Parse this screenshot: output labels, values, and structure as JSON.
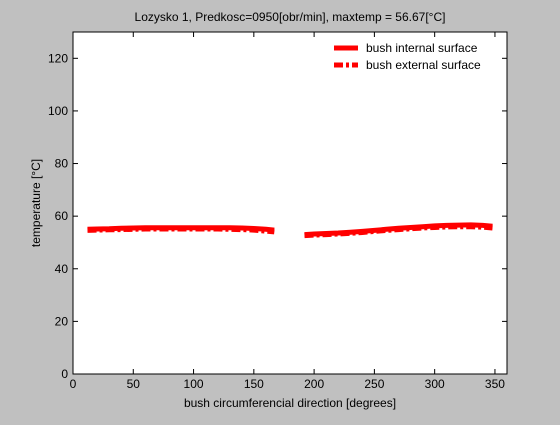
{
  "figure": {
    "background": "#c0c0c0",
    "axes_background": "#ffffff"
  },
  "chart_data": {
    "type": "line",
    "title": "Lozysko 1, Predkosc=0950[obr/min], maxtemp = 56.67[°C]",
    "xlabel": "bush circumferencial direction [degrees]",
    "ylabel": "temperature [°C]",
    "xlim": [
      0,
      360
    ],
    "ylim": [
      0,
      130
    ],
    "xticks": [
      0,
      50,
      100,
      150,
      200,
      250,
      300,
      350
    ],
    "yticks": [
      0,
      20,
      40,
      60,
      80,
      100,
      120
    ],
    "grid": false,
    "legend_position": "top-right",
    "series": [
      {
        "name": "bush internal surface",
        "style": "solid",
        "color": "#ff0000",
        "segments": [
          {
            "x": [
              12,
              20,
              30,
              40,
              50,
              60,
              70,
              80,
              90,
              100,
              110,
              120,
              130,
              140,
              150,
              160,
              167
            ],
            "y": [
              55.0,
              55.1,
              55.2,
              55.4,
              55.5,
              55.6,
              55.6,
              55.6,
              55.6,
              55.6,
              55.6,
              55.6,
              55.6,
              55.5,
              55.3,
              55.0,
              54.7
            ]
          },
          {
            "x": [
              192,
              200,
              210,
              220,
              230,
              240,
              250,
              260,
              270,
              280,
              290,
              300,
              310,
              320,
              330,
              340,
              348
            ],
            "y": [
              53.0,
              53.2,
              53.4,
              53.6,
              53.9,
              54.2,
              54.6,
              55.0,
              55.4,
              55.7,
              56.0,
              56.3,
              56.5,
              56.6,
              56.67,
              56.5,
              56.2
            ]
          }
        ]
      },
      {
        "name": "bush external surface",
        "style": "dashdot",
        "color": "#ff0000",
        "segments": [
          {
            "x": [
              12,
              20,
              30,
              40,
              50,
              60,
              70,
              80,
              90,
              100,
              110,
              120,
              130,
              140,
              150,
              160,
              167
            ],
            "y": [
              54.6,
              54.7,
              54.8,
              54.9,
              55.0,
              55.1,
              55.1,
              55.1,
              55.1,
              55.1,
              55.1,
              55.1,
              55.0,
              54.9,
              54.7,
              54.3,
              54.0
            ]
          },
          {
            "x": [
              192,
              200,
              210,
              220,
              230,
              240,
              250,
              260,
              270,
              280,
              290,
              300,
              310,
              320,
              330,
              340,
              348
            ],
            "y": [
              52.6,
              52.8,
              53.0,
              53.2,
              53.5,
              53.8,
              54.2,
              54.6,
              54.9,
              55.2,
              55.5,
              55.7,
              55.9,
              56.0,
              56.0,
              55.8,
              55.5
            ]
          }
        ]
      }
    ]
  }
}
